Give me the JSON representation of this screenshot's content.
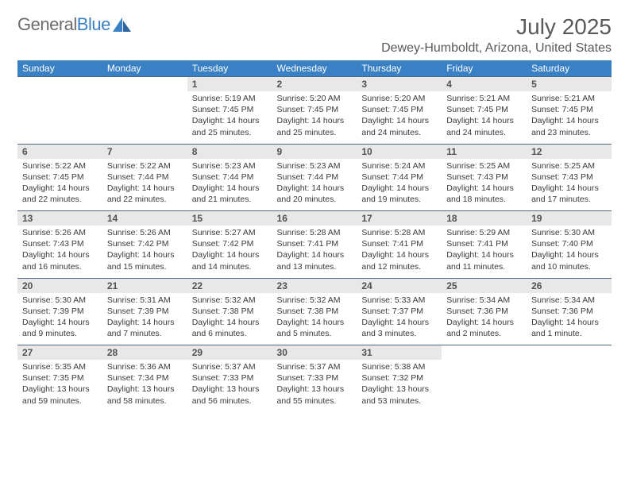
{
  "brand": {
    "name_a": "General",
    "name_b": "Blue"
  },
  "title": "July 2025",
  "subtitle": "Dewey-Humboldt, Arizona, United States",
  "colors": {
    "header_bg": "#3a80c4",
    "header_text": "#ffffff",
    "daynum_bg": "#e8e8e8",
    "daynum_text": "#525252",
    "rule": "#4a6a8a",
    "text": "#3a3a3a",
    "title": "#595959",
    "logo_gray": "#6b6b6b",
    "logo_blue": "#3a80c4"
  },
  "daysOfWeek": [
    "Sunday",
    "Monday",
    "Tuesday",
    "Wednesday",
    "Thursday",
    "Friday",
    "Saturday"
  ],
  "weeks": [
    [
      null,
      null,
      {
        "n": "1",
        "sr": "5:19 AM",
        "ss": "7:45 PM",
        "dl": "14 hours and 25 minutes."
      },
      {
        "n": "2",
        "sr": "5:20 AM",
        "ss": "7:45 PM",
        "dl": "14 hours and 25 minutes."
      },
      {
        "n": "3",
        "sr": "5:20 AM",
        "ss": "7:45 PM",
        "dl": "14 hours and 24 minutes."
      },
      {
        "n": "4",
        "sr": "5:21 AM",
        "ss": "7:45 PM",
        "dl": "14 hours and 24 minutes."
      },
      {
        "n": "5",
        "sr": "5:21 AM",
        "ss": "7:45 PM",
        "dl": "14 hours and 23 minutes."
      }
    ],
    [
      {
        "n": "6",
        "sr": "5:22 AM",
        "ss": "7:45 PM",
        "dl": "14 hours and 22 minutes."
      },
      {
        "n": "7",
        "sr": "5:22 AM",
        "ss": "7:44 PM",
        "dl": "14 hours and 22 minutes."
      },
      {
        "n": "8",
        "sr": "5:23 AM",
        "ss": "7:44 PM",
        "dl": "14 hours and 21 minutes."
      },
      {
        "n": "9",
        "sr": "5:23 AM",
        "ss": "7:44 PM",
        "dl": "14 hours and 20 minutes."
      },
      {
        "n": "10",
        "sr": "5:24 AM",
        "ss": "7:44 PM",
        "dl": "14 hours and 19 minutes."
      },
      {
        "n": "11",
        "sr": "5:25 AM",
        "ss": "7:43 PM",
        "dl": "14 hours and 18 minutes."
      },
      {
        "n": "12",
        "sr": "5:25 AM",
        "ss": "7:43 PM",
        "dl": "14 hours and 17 minutes."
      }
    ],
    [
      {
        "n": "13",
        "sr": "5:26 AM",
        "ss": "7:43 PM",
        "dl": "14 hours and 16 minutes."
      },
      {
        "n": "14",
        "sr": "5:26 AM",
        "ss": "7:42 PM",
        "dl": "14 hours and 15 minutes."
      },
      {
        "n": "15",
        "sr": "5:27 AM",
        "ss": "7:42 PM",
        "dl": "14 hours and 14 minutes."
      },
      {
        "n": "16",
        "sr": "5:28 AM",
        "ss": "7:41 PM",
        "dl": "14 hours and 13 minutes."
      },
      {
        "n": "17",
        "sr": "5:28 AM",
        "ss": "7:41 PM",
        "dl": "14 hours and 12 minutes."
      },
      {
        "n": "18",
        "sr": "5:29 AM",
        "ss": "7:41 PM",
        "dl": "14 hours and 11 minutes."
      },
      {
        "n": "19",
        "sr": "5:30 AM",
        "ss": "7:40 PM",
        "dl": "14 hours and 10 minutes."
      }
    ],
    [
      {
        "n": "20",
        "sr": "5:30 AM",
        "ss": "7:39 PM",
        "dl": "14 hours and 9 minutes."
      },
      {
        "n": "21",
        "sr": "5:31 AM",
        "ss": "7:39 PM",
        "dl": "14 hours and 7 minutes."
      },
      {
        "n": "22",
        "sr": "5:32 AM",
        "ss": "7:38 PM",
        "dl": "14 hours and 6 minutes."
      },
      {
        "n": "23",
        "sr": "5:32 AM",
        "ss": "7:38 PM",
        "dl": "14 hours and 5 minutes."
      },
      {
        "n": "24",
        "sr": "5:33 AM",
        "ss": "7:37 PM",
        "dl": "14 hours and 3 minutes."
      },
      {
        "n": "25",
        "sr": "5:34 AM",
        "ss": "7:36 PM",
        "dl": "14 hours and 2 minutes."
      },
      {
        "n": "26",
        "sr": "5:34 AM",
        "ss": "7:36 PM",
        "dl": "14 hours and 1 minute."
      }
    ],
    [
      {
        "n": "27",
        "sr": "5:35 AM",
        "ss": "7:35 PM",
        "dl": "13 hours and 59 minutes."
      },
      {
        "n": "28",
        "sr": "5:36 AM",
        "ss": "7:34 PM",
        "dl": "13 hours and 58 minutes."
      },
      {
        "n": "29",
        "sr": "5:37 AM",
        "ss": "7:33 PM",
        "dl": "13 hours and 56 minutes."
      },
      {
        "n": "30",
        "sr": "5:37 AM",
        "ss": "7:33 PM",
        "dl": "13 hours and 55 minutes."
      },
      {
        "n": "31",
        "sr": "5:38 AM",
        "ss": "7:32 PM",
        "dl": "13 hours and 53 minutes."
      },
      null,
      null
    ]
  ],
  "labels": {
    "sunrise": "Sunrise:",
    "sunset": "Sunset:",
    "daylight": "Daylight:"
  }
}
